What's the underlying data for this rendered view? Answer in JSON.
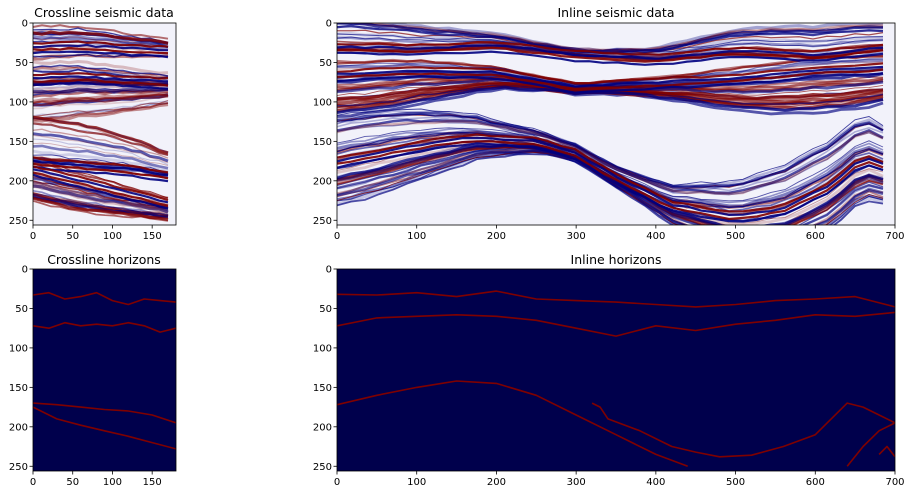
{
  "figure": {
    "panels": [
      {
        "id": "crossline-seismic",
        "title": "Crossline seismic data",
        "kind": "seismic",
        "xticks": [
          0,
          50,
          100,
          150
        ],
        "yticks": [
          0,
          50,
          100,
          150,
          200,
          250
        ]
      },
      {
        "id": "inline-seismic",
        "title": "Inline seismic data",
        "kind": "seismic",
        "xticks": [
          0,
          100,
          200,
          300,
          400,
          500,
          600,
          700
        ],
        "yticks": [
          0,
          50,
          100,
          150,
          200,
          250
        ]
      },
      {
        "id": "crossline-horizons",
        "title": "Crossline horizons",
        "kind": "horizons",
        "xticks": [
          0,
          50,
          100,
          150
        ],
        "yticks": [
          0,
          50,
          100,
          150,
          200,
          250
        ]
      },
      {
        "id": "inline-horizons",
        "title": "Inline horizons",
        "kind": "horizons",
        "xticks": [
          0,
          100,
          200,
          300,
          400,
          500,
          600,
          700
        ],
        "yticks": [
          0,
          50,
          100,
          150,
          200,
          250
        ]
      }
    ]
  },
  "chart_data": [
    {
      "type": "heatmap",
      "title": "Crossline seismic data",
      "xlim": [
        0,
        180
      ],
      "ylim": [
        256,
        0
      ],
      "colormap": "seismic (blue-white-red)",
      "colors": {
        "negative": "#00007f",
        "zero": "#ffffff",
        "positive": "#7f0000"
      },
      "features": [
        {
          "x": [
            0,
            60,
            120,
            180
          ],
          "y": [
            175,
            180,
            185,
            195
          ]
        },
        {
          "x": [
            0,
            60,
            120,
            180
          ],
          "y": [
            185,
            200,
            215,
            230
          ]
        },
        {
          "x": [
            0,
            60,
            120,
            180
          ],
          "y": [
            30,
            28,
            32,
            35
          ]
        },
        {
          "x": [
            0,
            60,
            120,
            180
          ],
          "y": [
            70,
            68,
            72,
            75
          ]
        }
      ]
    },
    {
      "type": "heatmap",
      "title": "Inline seismic data",
      "xlim": [
        0,
        700
      ],
      "ylim": [
        256,
        0
      ],
      "colormap": "seismic (blue-white-red)",
      "colors": {
        "negative": "#00007f",
        "zero": "#ffffff",
        "positive": "#7f0000"
      },
      "features": [
        {
          "x": [
            0,
            100,
            170,
            250,
            300,
            350,
            420,
            500,
            560,
            620,
            660,
            700
          ],
          "y": [
            175,
            155,
            145,
            150,
            165,
            195,
            230,
            245,
            235,
            205,
            170,
            185
          ]
        },
        {
          "x": [
            0,
            100,
            200,
            300,
            400,
            500,
            600,
            700
          ],
          "y": [
            30,
            32,
            28,
            40,
            45,
            35,
            40,
            30
          ]
        },
        {
          "x": [
            0,
            100,
            200,
            300,
            400,
            500,
            600,
            700
          ],
          "y": [
            65,
            60,
            62,
            80,
            75,
            70,
            60,
            55
          ]
        }
      ]
    },
    {
      "type": "line",
      "title": "Crossline horizons",
      "xlim": [
        0,
        180
      ],
      "ylim": [
        256,
        0
      ],
      "colors": {
        "background": "#00004c",
        "line": "#7f0000"
      },
      "series": [
        {
          "x": [
            0,
            20,
            40,
            60,
            80,
            100,
            120,
            140,
            160,
            180
          ],
          "y": [
            33,
            30,
            38,
            35,
            30,
            40,
            45,
            38,
            40,
            42
          ]
        },
        {
          "x": [
            0,
            20,
            40,
            60,
            80,
            100,
            120,
            140,
            160,
            180
          ],
          "y": [
            72,
            75,
            68,
            72,
            70,
            72,
            68,
            72,
            80,
            75
          ]
        },
        {
          "x": [
            0,
            30,
            60,
            90,
            120,
            150,
            180
          ],
          "y": [
            170,
            172,
            175,
            178,
            180,
            185,
            195
          ]
        },
        {
          "x": [
            0,
            30,
            60,
            90,
            120,
            150,
            180
          ],
          "y": [
            175,
            190,
            198,
            205,
            212,
            220,
            228
          ]
        }
      ]
    },
    {
      "type": "line",
      "title": "Inline horizons",
      "xlim": [
        0,
        700
      ],
      "ylim": [
        256,
        0
      ],
      "colors": {
        "background": "#00004c",
        "line": "#7f0000"
      },
      "series": [
        {
          "x": [
            0,
            50,
            100,
            150,
            200,
            250,
            300,
            350,
            400,
            450,
            500,
            550,
            600,
            650,
            700
          ],
          "y": [
            32,
            33,
            30,
            35,
            28,
            38,
            40,
            42,
            45,
            48,
            45,
            40,
            38,
            35,
            48
          ]
        },
        {
          "x": [
            0,
            50,
            100,
            150,
            200,
            250,
            300,
            350,
            400,
            450,
            500,
            550,
            600,
            650,
            700
          ],
          "y": [
            72,
            62,
            60,
            58,
            60,
            65,
            75,
            85,
            72,
            78,
            70,
            65,
            58,
            60,
            55
          ]
        },
        {
          "x": [
            0,
            50,
            100,
            150,
            200,
            250,
            300,
            350,
            400,
            440
          ],
          "y": [
            172,
            160,
            150,
            142,
            145,
            160,
            185,
            210,
            235,
            250
          ]
        },
        {
          "x": [
            320,
            330,
            340,
            380,
            420,
            450,
            480,
            520,
            560,
            600,
            640,
            660,
            680,
            700
          ],
          "y": [
            170,
            175,
            190,
            205,
            225,
            232,
            238,
            236,
            225,
            210,
            170,
            175,
            185,
            195
          ]
        },
        {
          "x": [
            640,
            660,
            680,
            700
          ],
          "y": [
            250,
            225,
            205,
            195
          ]
        },
        {
          "x": [
            680,
            690,
            700
          ],
          "y": [
            235,
            225,
            238
          ]
        }
      ]
    }
  ]
}
